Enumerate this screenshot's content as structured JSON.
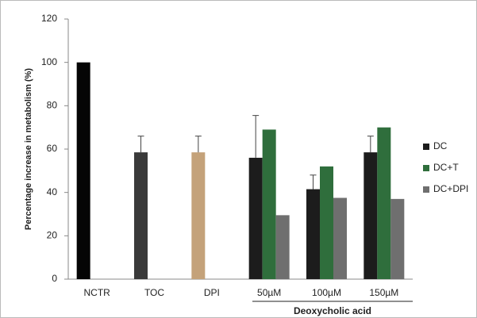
{
  "chart_data": {
    "type": "bar",
    "y_label": "Percentage increase in metabolism (%)",
    "categories": [
      "NCTR",
      "TOC",
      "DPI",
      "50µM",
      "100µM",
      "150µM"
    ],
    "values": [
      100,
      58.5,
      58.5,
      null,
      null,
      null
    ],
    "errors": [
      null,
      7.5,
      7.5,
      null,
      null,
      null
    ],
    "colors": [
      "#050505",
      "#3a3a3a",
      "#c4a27a",
      null,
      null,
      null
    ],
    "series": [
      {
        "name": "DC",
        "color": "#1c1c1c",
        "values": [
          null,
          null,
          null,
          56,
          41.5,
          58.5
        ],
        "errors": [
          null,
          null,
          null,
          19.5,
          6.5,
          7.5
        ]
      },
      {
        "name": "DC+T",
        "color": "#2f6e3c",
        "values": [
          null,
          null,
          null,
          69,
          52,
          70
        ]
      },
      {
        "name": "DC+DPI",
        "color": "#6f6f6f",
        "values": [
          null,
          null,
          null,
          29.5,
          37.5,
          37
        ]
      }
    ],
    "group_label": "Deoxycholic acid",
    "ylim": [
      0,
      120
    ],
    "yticks": [
      0,
      20,
      40,
      60,
      80,
      100,
      120
    ],
    "legend": "right"
  }
}
